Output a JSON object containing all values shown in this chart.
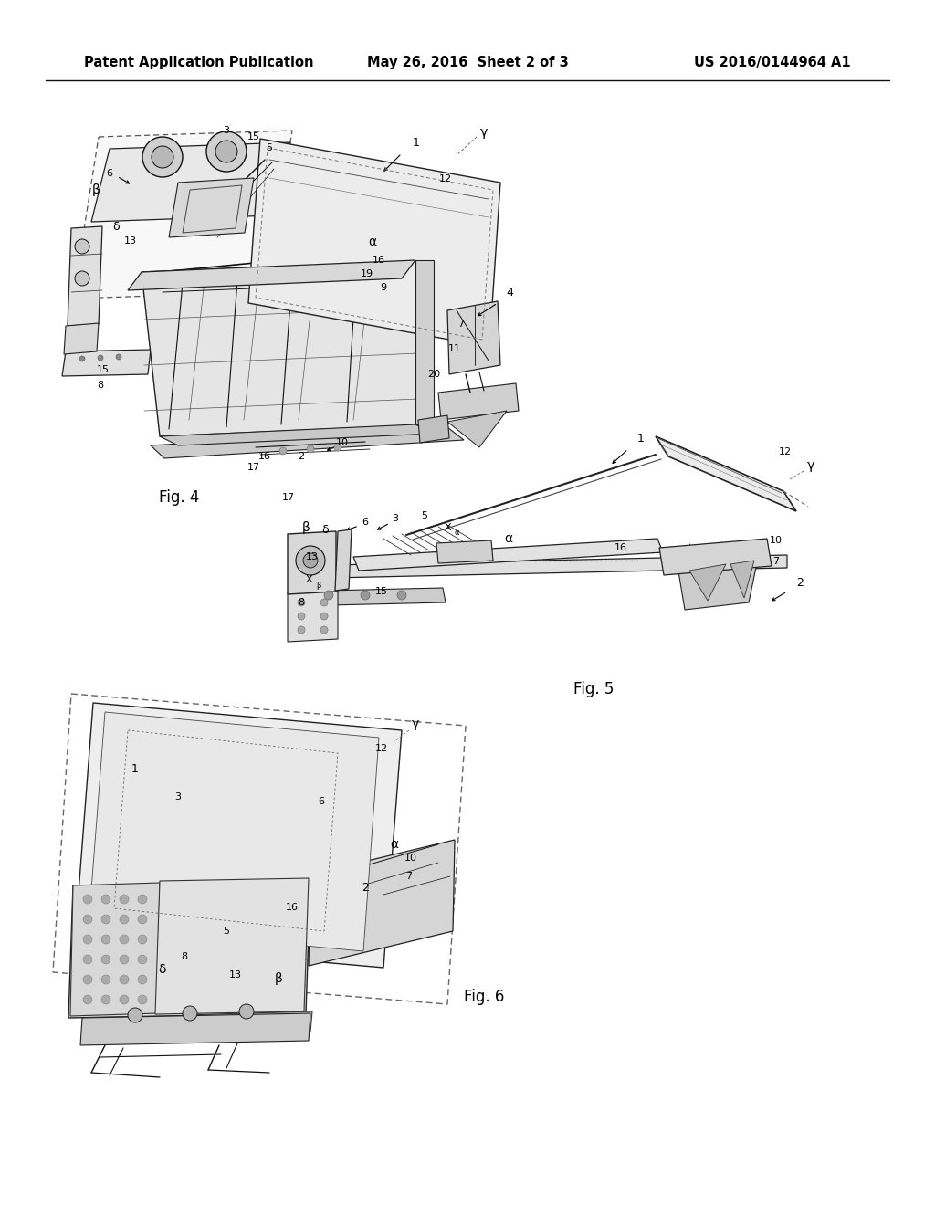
{
  "bg": "#ffffff",
  "tc": "#000000",
  "header_left": "Patent Application Publication",
  "header_center": "May 26, 2016  Sheet 2 of 3",
  "header_right": "US 2016/0144964 A1",
  "fig4_label": "Fig. 4",
  "fig5_label": "Fig. 5",
  "fig6_label": "Fig. 6"
}
